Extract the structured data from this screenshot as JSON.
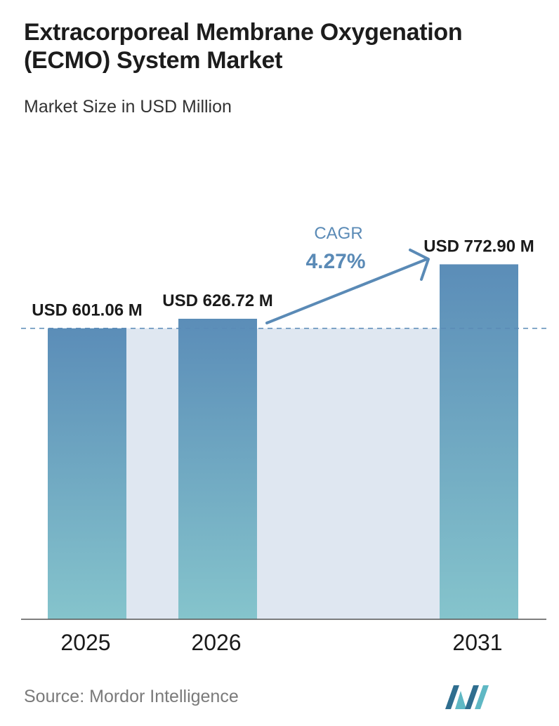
{
  "header": {
    "title": "Extracorporeal Membrane Oxygenation (ECMO) System Market",
    "subtitle": "Market Size in USD Million"
  },
  "chart_data": {
    "type": "bar",
    "categories": [
      "2025",
      "2026",
      "2031"
    ],
    "values": [
      601.06,
      626.72,
      772.9
    ],
    "value_labels": [
      "USD 601.06 M",
      "USD 626.72 M",
      "USD 772.90 M"
    ],
    "cagr_label": "CAGR",
    "cagr_value": "4.27%",
    "colors": {
      "bar_top": "#5b8db8",
      "bar_bottom": "#85c4cc",
      "band": "#dfe7f1",
      "arrow": "#5a8ab6",
      "dashed_line": "#5a8ab6"
    }
  },
  "footer": {
    "source_label": "Source:",
    "source_name": "Mordor Intelligence"
  },
  "logo": {
    "icon": "mordor-intelligence-logo"
  }
}
